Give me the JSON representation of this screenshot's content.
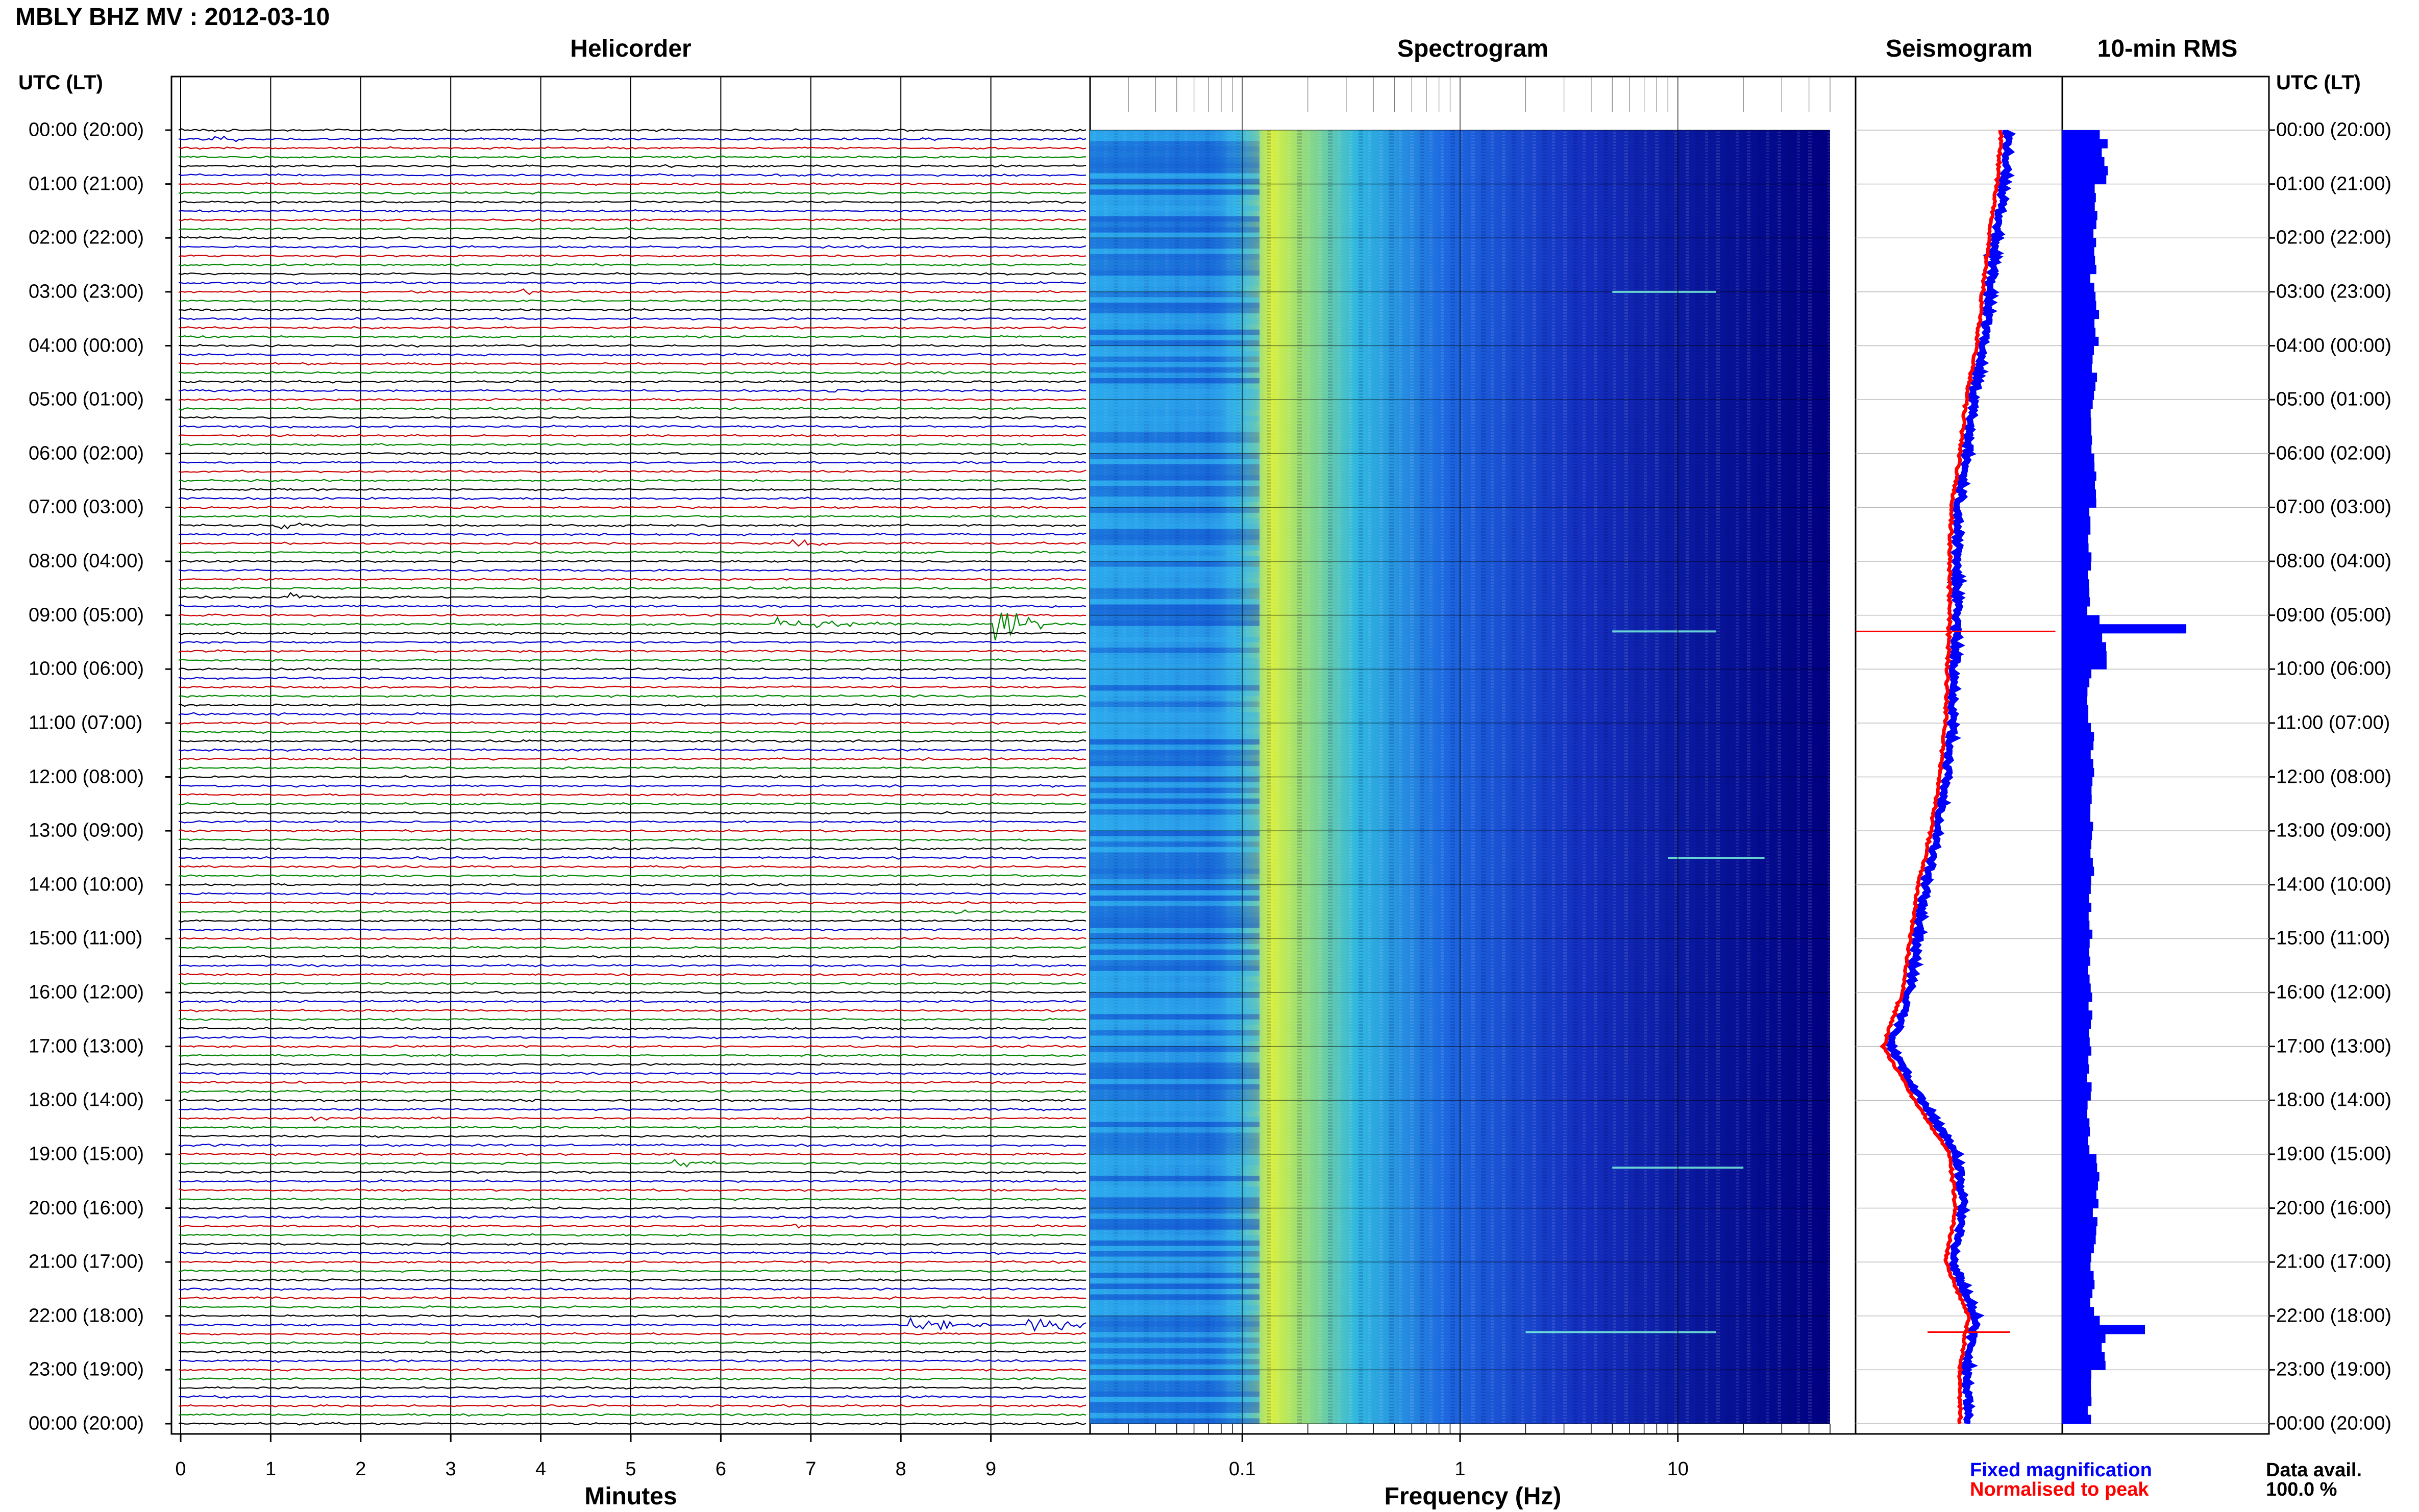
{
  "header": {
    "station_title": "MBLY BHZ MV : 2012-03-10",
    "utc_label_left": "UTC (LT)",
    "utc_label_right": "UTC (LT)"
  },
  "panels": {
    "helicorder_title": "Helicorder",
    "spectrogram_title": "Spectrogram",
    "seismogram_title": "Seismogram",
    "rms_title": "10-min RMS"
  },
  "legend": {
    "fixed": "Fixed magnification",
    "normalised": "Normalised to peak",
    "fixed_color": "#0000ff",
    "normalised_color": "#ff0000",
    "data_avail_label": "Data avail.",
    "data_avail_value": "100.0 %"
  },
  "colors": {
    "trace_cycle": [
      "#000000",
      "#0000cc",
      "#cc0000",
      "#008800"
    ],
    "rms_bar": "#0000ff",
    "spectrogram_low": "#000080",
    "spectrogram_high": "#f0ff40"
  },
  "chart_data": [
    {
      "type": "line",
      "name": "helicorder",
      "title": "Helicorder",
      "xlabel": "Minutes",
      "x_ticks": [
        "0",
        "1",
        "2",
        "3",
        "4",
        "5",
        "6",
        "7",
        "8",
        "9"
      ],
      "xlim": [
        0,
        10
      ],
      "rows_per_hour": 6,
      "y_ticks": [
        "00:00 (20:00)",
        "01:00 (21:00)",
        "02:00 (22:00)",
        "03:00 (23:00)",
        "04:00 (00:00)",
        "05:00 (01:00)",
        "06:00 (02:00)",
        "07:00 (03:00)",
        "08:00 (04:00)",
        "09:00 (05:00)",
        "10:00 (06:00)",
        "11:00 (07:00)",
        "12:00 (08:00)",
        "13:00 (09:00)",
        "14:00 (10:00)",
        "15:00 (11:00)",
        "16:00 (12:00)",
        "17:00 (13:00)",
        "18:00 (14:00)",
        "19:00 (15:00)",
        "20:00 (16:00)",
        "21:00 (17:00)",
        "22:00 (18:00)",
        "23:00 (19:00)",
        "00:00 (20:00)"
      ],
      "events": [
        {
          "hour": 0.2,
          "minute": 0.4,
          "amp": 2.0,
          "dur": 0.4
        },
        {
          "hour": 3.0,
          "minute": 3.8,
          "amp": 1.2,
          "dur": 0.3
        },
        {
          "hour": 4.85,
          "minute": 7.1,
          "amp": 1.5,
          "dur": 0.4
        },
        {
          "hour": 7.3,
          "minute": 1.1,
          "amp": 1.5,
          "dur": 0.6
        },
        {
          "hour": 7.65,
          "minute": 6.8,
          "amp": 1.5,
          "dur": 0.5
        },
        {
          "hour": 8.65,
          "minute": 1.2,
          "amp": 1.8,
          "dur": 0.4
        },
        {
          "hour": 9.2,
          "minute": 6.6,
          "amp": 2.5,
          "dur": 1.5
        },
        {
          "hour": 9.1,
          "minute": 9.0,
          "amp": 9.0,
          "dur": 0.5
        },
        {
          "hour": 13.5,
          "minute": 2.8,
          "amp": 1.2,
          "dur": 0.2
        },
        {
          "hour": 14.5,
          "minute": 8.6,
          "amp": 1.0,
          "dur": 0.3
        },
        {
          "hour": 18.35,
          "minute": 1.5,
          "amp": 1.0,
          "dur": 0.3
        },
        {
          "hour": 19.15,
          "minute": 5.4,
          "amp": 1.5,
          "dur": 0.9
        },
        {
          "hour": 20.35,
          "minute": 6.8,
          "amp": 1.2,
          "dur": 0.2
        },
        {
          "hour": 22.15,
          "minute": 8.1,
          "amp": 3.0,
          "dur": 0.9
        },
        {
          "hour": 22.15,
          "minute": 9.4,
          "amp": 3.5,
          "dur": 0.7
        }
      ]
    },
    {
      "type": "heatmap",
      "name": "spectrogram",
      "title": "Spectrogram",
      "xlabel": "Frequency (Hz)",
      "x_scale": "log",
      "x_ticks": [
        "0.1",
        "1",
        "10"
      ],
      "xlim": [
        0.02,
        50
      ],
      "peak_band_hz": [
        0.14,
        0.3
      ],
      "narrow_lines": [
        {
          "hour": 9.3,
          "f_from": 5,
          "f_to": 15
        },
        {
          "hour": 22.3,
          "f_from": 2,
          "f_to": 15
        },
        {
          "hour": 19.25,
          "f_from": 5,
          "f_to": 20
        },
        {
          "hour": 13.5,
          "f_from": 9,
          "f_to": 25
        },
        {
          "hour": 3.0,
          "f_from": 5,
          "f_to": 15
        }
      ]
    },
    {
      "type": "line",
      "name": "seismogram",
      "title": "Seismogram",
      "series": [
        {
          "name": "Fixed magnification",
          "color": "#0000ff"
        },
        {
          "name": "Normalised to peak",
          "color": "#ff0000"
        }
      ],
      "hours": [
        0,
        1,
        2,
        3,
        4,
        5,
        6,
        7,
        8,
        9,
        10,
        11,
        12,
        13,
        14,
        15,
        16,
        17,
        18,
        19,
        20,
        21,
        22,
        23,
        24
      ],
      "offset": [
        0.72,
        0.7,
        0.66,
        0.63,
        0.6,
        0.55,
        0.52,
        0.48,
        0.47,
        0.47,
        0.46,
        0.45,
        0.42,
        0.38,
        0.32,
        0.28,
        0.24,
        0.15,
        0.3,
        0.47,
        0.5,
        0.45,
        0.56,
        0.52,
        0.52
      ],
      "spikes": [
        {
          "hour": 9.3,
          "width": 1.0
        },
        {
          "hour": 22.3,
          "width": 0.4
        }
      ]
    },
    {
      "type": "bar",
      "name": "rms",
      "title": "10-min RMS",
      "orientation": "horizontal",
      "x_unit": "relative",
      "categories_hours": [
        0,
        1,
        2,
        3,
        4,
        5,
        6,
        7,
        8,
        9,
        10,
        11,
        12,
        13,
        14,
        15,
        16,
        17,
        18,
        19,
        20,
        21,
        22,
        23
      ],
      "values": [
        0.8,
        0.62,
        0.6,
        0.65,
        0.62,
        0.58,
        0.6,
        0.52,
        0.52,
        2.4,
        0.52,
        0.56,
        0.58,
        0.58,
        0.56,
        0.55,
        0.56,
        0.52,
        0.52,
        0.66,
        0.62,
        0.6,
        1.6,
        0.52
      ],
      "xlim": [
        0,
        4
      ]
    }
  ]
}
